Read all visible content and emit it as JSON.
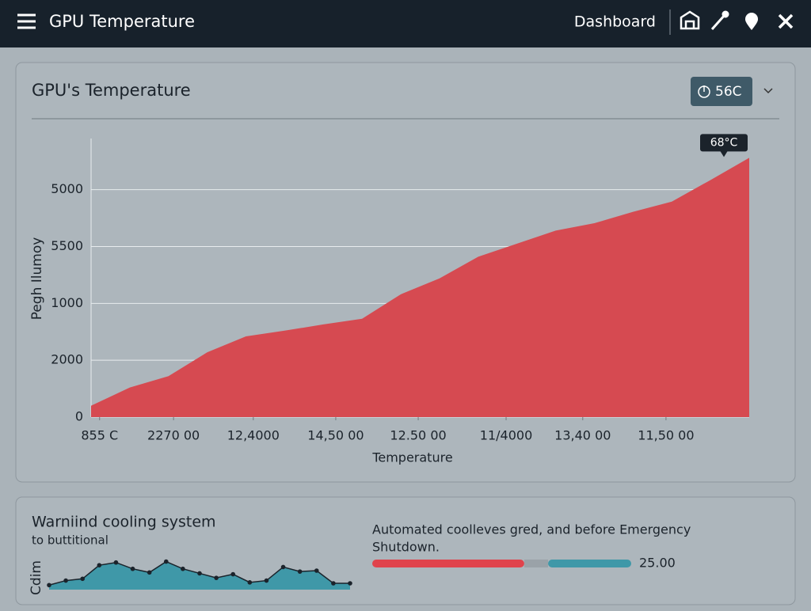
{
  "header": {
    "title": "GPU Temperature",
    "nav": "Dashboard"
  },
  "panel": {
    "title": "GPU's Temperature",
    "badge": "56C",
    "chart_data": {
      "type": "area",
      "annotation": "68°C",
      "y_label": "Pegh Ilumoy",
      "x_label": "Temperature",
      "color": "#d64a51",
      "grid": true,
      "x": [
        0,
        1,
        2,
        3,
        4,
        5,
        6,
        7,
        8,
        9,
        10,
        11,
        12,
        13,
        14,
        15,
        16,
        17
      ],
      "values": [
        0.2,
        0.52,
        0.72,
        1.14,
        1.42,
        1.52,
        1.63,
        1.73,
        2.16,
        2.44,
        2.82,
        3.05,
        3.28,
        3.41,
        3.61,
        3.79,
        4.17,
        4.56
      ],
      "xlim": [
        0,
        17
      ],
      "xticks": [
        {
          "value": 0.22,
          "label": "855 C"
        },
        {
          "value": 2.13,
          "label": "2270 00"
        },
        {
          "value": 4.19,
          "label": "12,4000"
        },
        {
          "value": 6.32,
          "label": "14,50 00"
        },
        {
          "value": 8.45,
          "label": "12.50 00"
        },
        {
          "value": 10.72,
          "label": "11/4000"
        },
        {
          "value": 12.7,
          "label": "13,40 00"
        },
        {
          "value": 14.85,
          "label": "11,50 00"
        }
      ],
      "ylim": [
        0,
        4.9
      ],
      "yticks": [
        {
          "value": 4,
          "label": "5000"
        },
        {
          "value": 3,
          "label": "5500"
        },
        {
          "value": 2,
          "label": "1000"
        },
        {
          "value": 1,
          "label": "2000"
        },
        0
      ]
    }
  },
  "warning": {
    "title": "Warniind cooling system",
    "subtitle": "to buttitional",
    "axis_label": "Cdim",
    "mini_chart": {
      "type": "area",
      "color": "#3f98a8",
      "ylim": [
        0,
        35
      ],
      "values": [
        5,
        10,
        12,
        27,
        30,
        23,
        19,
        31,
        23,
        18,
        13,
        17,
        8,
        10,
        25,
        20,
        21,
        7,
        7
      ]
    },
    "message": [
      "Automated coolleves gred, and before Emergency",
      "Shutdown."
    ],
    "progress": {
      "segments": [
        {
          "color": "#e0434c",
          "value": 58.7
        },
        {
          "color": "#9aa2a8",
          "value": 9.2
        },
        {
          "color": "#3f98a8",
          "value": 32.1
        }
      ],
      "label": "25.00"
    }
  }
}
